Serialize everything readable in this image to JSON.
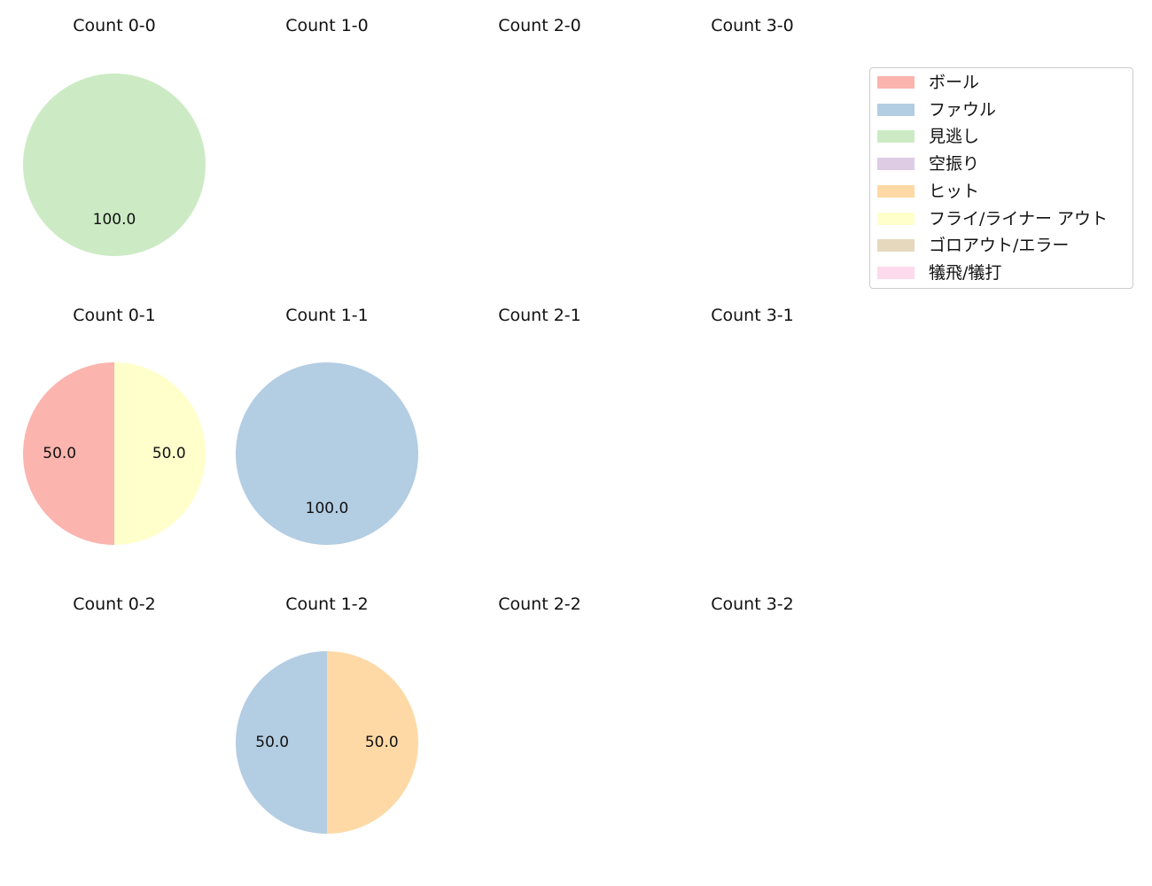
{
  "chart_data": {
    "type": "pie",
    "categories": [
      "ボール",
      "ファウル",
      "見逃し",
      "空振り",
      "ヒット",
      "フライ/ライナー アウト",
      "ゴロアウト/エラー",
      "犠飛/犠打"
    ],
    "colors": [
      "#fbb4ae",
      "#b3cde3",
      "#ccebc5",
      "#decbe4",
      "#fed9a6",
      "#ffffcc",
      "#e5d8bd",
      "#fddaec"
    ],
    "legend_position": "top-right",
    "panels": [
      {
        "title": "Count 0-0",
        "values": [
          0,
          0,
          1,
          0,
          0,
          0,
          0,
          0
        ],
        "labels": [
          "100.0"
        ]
      },
      {
        "title": "Count 1-0",
        "values": [],
        "labels": []
      },
      {
        "title": "Count 2-0",
        "values": [],
        "labels": []
      },
      {
        "title": "Count 3-0",
        "values": [],
        "labels": []
      },
      {
        "title": "Count 0-1",
        "values": [
          1,
          0,
          0,
          0,
          0,
          1,
          0,
          0
        ],
        "labels": [
          "50.0",
          "50.0"
        ]
      },
      {
        "title": "Count 1-1",
        "values": [
          0,
          1,
          0,
          0,
          0,
          0,
          0,
          0
        ],
        "labels": [
          "100.0"
        ]
      },
      {
        "title": "Count 2-1",
        "values": [],
        "labels": []
      },
      {
        "title": "Count 3-1",
        "values": [],
        "labels": []
      },
      {
        "title": "Count 0-2",
        "values": [],
        "labels": []
      },
      {
        "title": "Count 1-2",
        "values": [
          0,
          1,
          0,
          0,
          1,
          0,
          0,
          0
        ],
        "labels": [
          "50.0",
          "50.0"
        ]
      },
      {
        "title": "Count 2-2",
        "values": [],
        "labels": []
      },
      {
        "title": "Count 3-2",
        "values": [],
        "labels": []
      }
    ]
  }
}
